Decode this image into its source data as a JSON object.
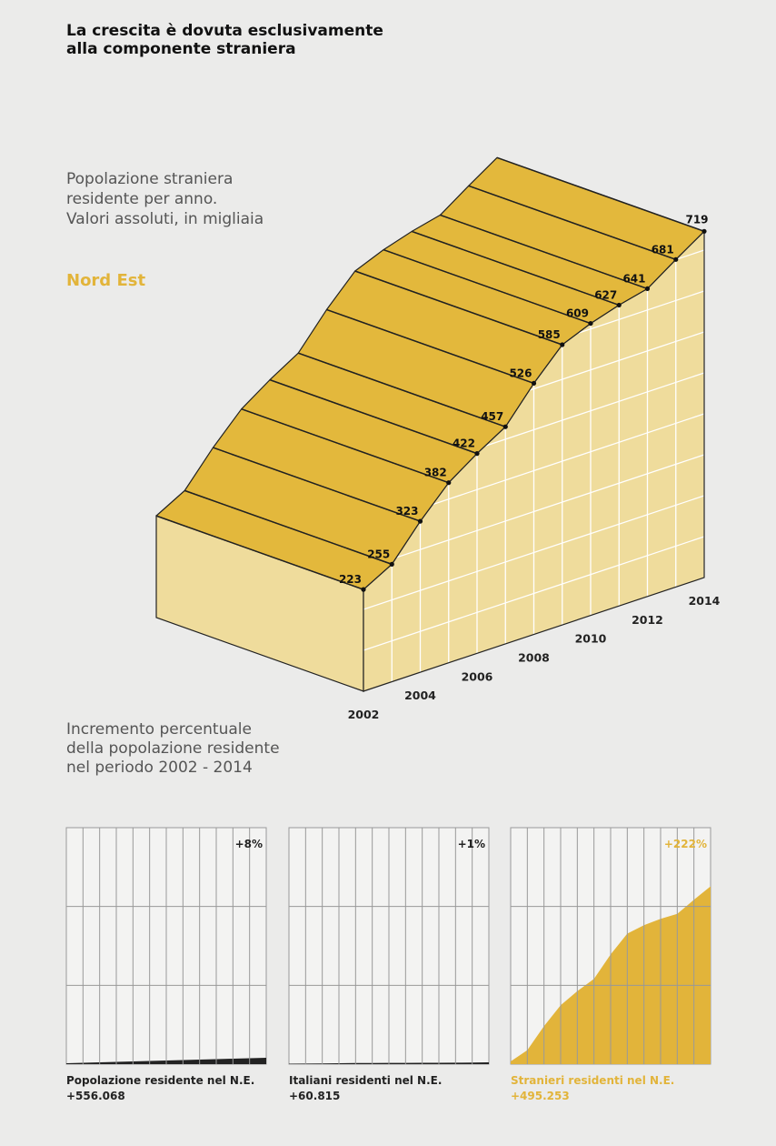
{
  "title_lines": [
    "La crescita è dovuta esclusivamente",
    "alla componente straniera"
  ],
  "subtitle_lines": [
    "Popolazione straniera",
    "residente per anno.",
    "Valori assoluti, in migliaia"
  ],
  "region": "Nord Est",
  "subtitle2_lines": [
    "Incremento percentuale",
    "della popolazione residente",
    "nel periodo 2002 - 2014"
  ],
  "colors": {
    "accent": "#e2b43a",
    "top_face": "#e3b83c",
    "side_face": "#efdc9c",
    "text": "#111111"
  },
  "chart_data": [
    {
      "type": "area",
      "style": "3d",
      "x": [
        2002,
        2003,
        2004,
        2005,
        2006,
        2007,
        2008,
        2009,
        2010,
        2011,
        2012,
        2013,
        2014
      ],
      "values": [
        223,
        255,
        323,
        382,
        422,
        457,
        526,
        585,
        609,
        627,
        641,
        681,
        719
      ],
      "data_labels": [
        "223",
        "255",
        "323",
        "382",
        "422",
        "457",
        "526",
        "585",
        "609",
        "627",
        "641",
        "681",
        "719"
      ],
      "x_tick_labels": [
        "2002",
        "2004",
        "2006",
        "2008",
        "2010",
        "2012",
        "2014"
      ],
      "grid": true
    },
    {
      "type": "area",
      "panels": [
        {
          "label": "Popolazione residente nel N.E.",
          "value": "+556.068",
          "percent": "+8%",
          "highlight": false
        },
        {
          "label": "Italiani residenti nel N.E.",
          "value": "+60.815",
          "percent": "+1%",
          "highlight": false
        },
        {
          "label": "Stranieri residenti nel N.E.",
          "value": "+495.253",
          "percent": "+222%",
          "highlight": true
        }
      ],
      "grid": true
    }
  ]
}
